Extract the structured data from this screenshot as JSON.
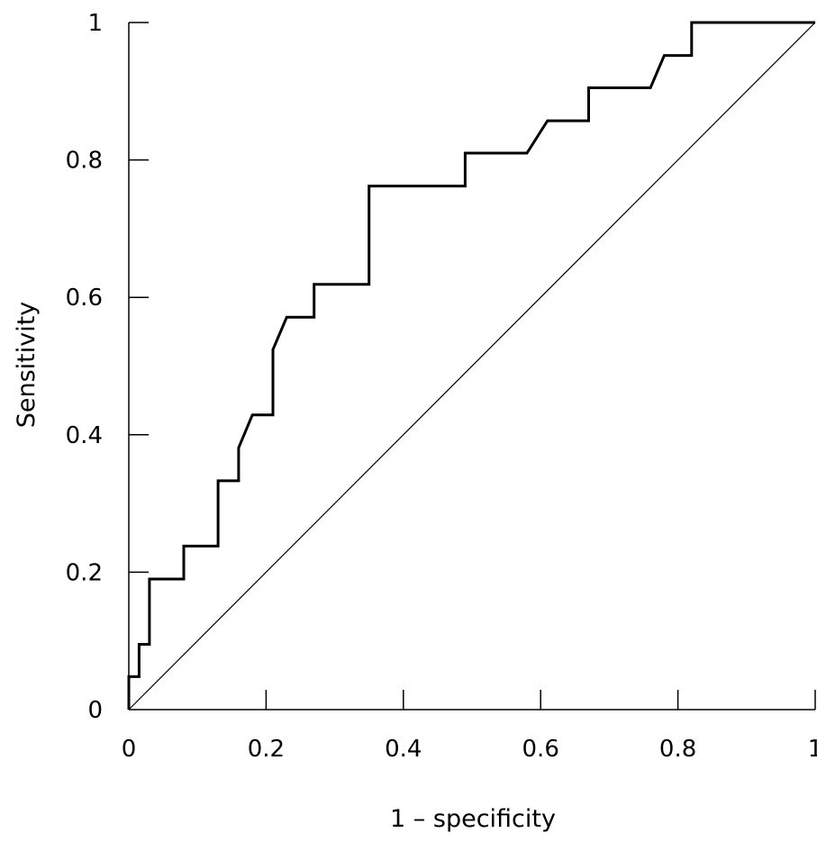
{
  "chart_data": {
    "type": "line",
    "title": "",
    "xlabel": "1 – specificity",
    "ylabel": "Sensitivity",
    "xlim": [
      0,
      1
    ],
    "ylim": [
      0,
      1
    ],
    "grid": false,
    "legend": "none",
    "x_ticks": [
      {
        "value": 0,
        "label": "0"
      },
      {
        "value": 0.2,
        "label": "0.2"
      },
      {
        "value": 0.4,
        "label": "0.4"
      },
      {
        "value": 0.6,
        "label": "0.6"
      },
      {
        "value": 0.8,
        "label": "0.8"
      },
      {
        "value": 1,
        "label": "1"
      }
    ],
    "y_ticks": [
      {
        "value": 0,
        "label": "0"
      },
      {
        "value": 0.2,
        "label": "0.2"
      },
      {
        "value": 0.4,
        "label": "0.4"
      },
      {
        "value": 0.6,
        "label": "0.6"
      },
      {
        "value": 0.8,
        "label": "0.8"
      },
      {
        "value": 1,
        "label": "1"
      }
    ],
    "series": [
      {
        "style": "roc-curve",
        "color": "#000000",
        "points": [
          [
            0,
            0
          ],
          [
            0,
            0.048
          ],
          [
            0.015,
            0.048
          ],
          [
            0.015,
            0.095
          ],
          [
            0.03,
            0.095
          ],
          [
            0.03,
            0.19
          ],
          [
            0.08,
            0.19
          ],
          [
            0.08,
            0.238
          ],
          [
            0.13,
            0.238
          ],
          [
            0.13,
            0.333
          ],
          [
            0.16,
            0.333
          ],
          [
            0.16,
            0.381
          ],
          [
            0.18,
            0.429
          ],
          [
            0.21,
            0.429
          ],
          [
            0.21,
            0.524
          ],
          [
            0.23,
            0.571
          ],
          [
            0.27,
            0.571
          ],
          [
            0.27,
            0.619
          ],
          [
            0.35,
            0.619
          ],
          [
            0.35,
            0.762
          ],
          [
            0.49,
            0.762
          ],
          [
            0.49,
            0.81
          ],
          [
            0.58,
            0.81
          ],
          [
            0.61,
            0.857
          ],
          [
            0.67,
            0.857
          ],
          [
            0.67,
            0.905
          ],
          [
            0.76,
            0.905
          ],
          [
            0.78,
            0.952
          ],
          [
            0.82,
            0.952
          ],
          [
            0.82,
            1.0
          ],
          [
            1.0,
            1.0
          ]
        ]
      },
      {
        "style": "reference-diagonal",
        "color": "#000000",
        "points": [
          [
            0,
            0
          ],
          [
            1,
            1
          ]
        ]
      }
    ]
  }
}
